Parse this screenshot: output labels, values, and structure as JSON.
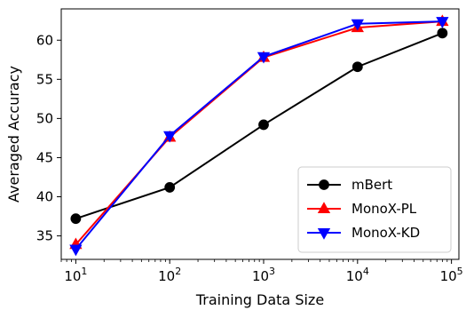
{
  "chart_data": {
    "type": "line",
    "title": "",
    "xlabel": "Training Data Size",
    "ylabel": "Averaged Accuracy",
    "xscale": "log",
    "xlim": [
      7,
      120000
    ],
    "ylim": [
      32,
      64
    ],
    "x_ticks": [
      {
        "value": 10,
        "base": "10",
        "exp": "1"
      },
      {
        "value": 100,
        "base": "10",
        "exp": "2"
      },
      {
        "value": 1000,
        "base": "10",
        "exp": "3"
      },
      {
        "value": 10000,
        "base": "10",
        "exp": "4"
      },
      {
        "value": 100000,
        "base": "10",
        "exp": "5"
      }
    ],
    "y_ticks": [
      35,
      40,
      45,
      50,
      55,
      60
    ],
    "grid": false,
    "legend_position": "lower-right",
    "series": [
      {
        "name": "mBert",
        "color": "#000000",
        "marker": "circle",
        "points": [
          [
            10,
            37.2
          ],
          [
            100,
            41.2
          ],
          [
            1000,
            49.2
          ],
          [
            10000,
            56.6
          ],
          [
            80000,
            60.9
          ]
        ]
      },
      {
        "name": "MonoX-PL",
        "color": "#ff0000",
        "marker": "triangle-up",
        "points": [
          [
            10,
            33.9
          ],
          [
            100,
            47.6
          ],
          [
            1000,
            57.8
          ],
          [
            10000,
            61.6
          ],
          [
            80000,
            62.4
          ]
        ]
      },
      {
        "name": "MonoX-KD",
        "color": "#0000ff",
        "marker": "triangle-down",
        "points": [
          [
            10,
            33.3
          ],
          [
            100,
            47.8
          ],
          [
            1000,
            57.9
          ],
          [
            10000,
            62.1
          ],
          [
            80000,
            62.4
          ]
        ]
      }
    ]
  }
}
